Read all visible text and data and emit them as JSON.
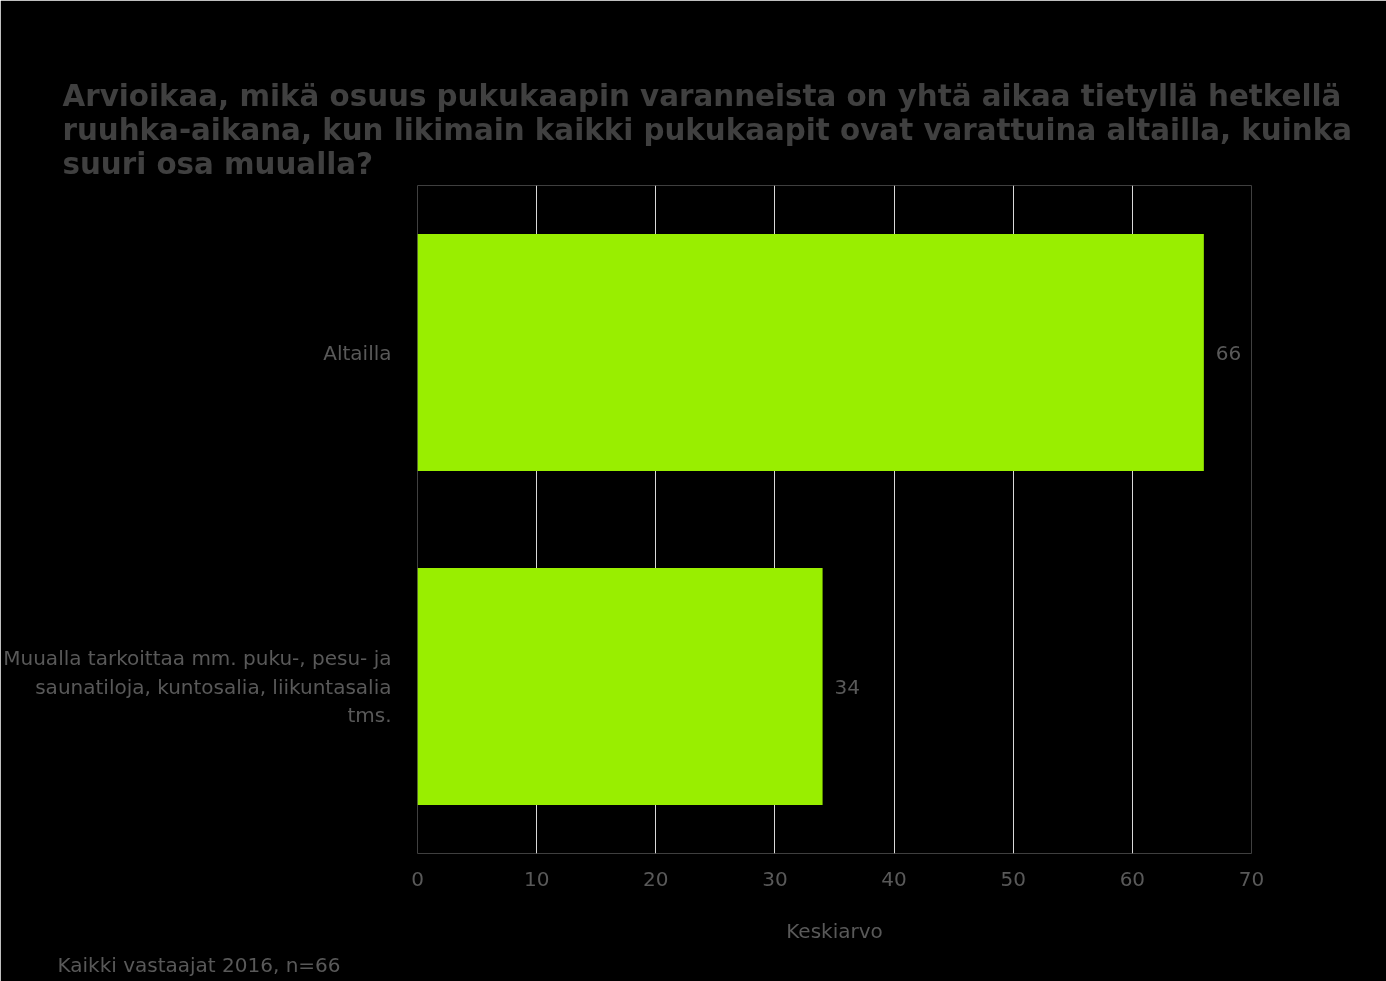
{
  "chart_data": {
    "type": "bar",
    "orientation": "horizontal",
    "title": "Arvioikaa, mikä osuus pukukaapin varanneista on yhtä aikaa tietyllä hetkellä ruuhka-aikana, kun likimain kaikki pukukaapit ovat varattuina altailla, kuinka suuri osa muualla?",
    "categories": [
      "Altailla",
      "Muualla tarkoittaa mm. puku-, pesu- ja saunatiloja, kuntosalia, liikuntasalia tms."
    ],
    "values": [
      66,
      34
    ],
    "color": "#99ee00",
    "xlim": [
      0,
      70
    ],
    "xticks": [
      0,
      10,
      20,
      30,
      40,
      50,
      60,
      70
    ],
    "xlabel": "Keskiarvo",
    "grid": "x",
    "data_labels": true,
    "annotations": [
      "Kaikki vastaajat 2016, n=66"
    ]
  }
}
